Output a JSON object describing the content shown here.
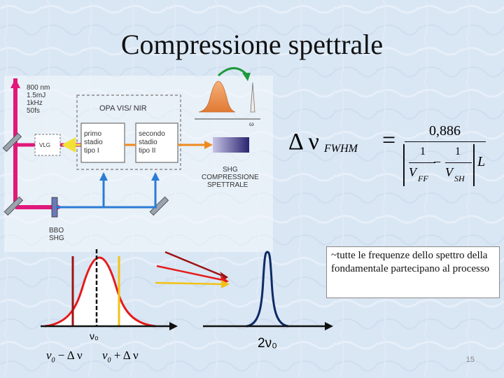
{
  "slide": {
    "title": "Compressione spettrale",
    "number": "15",
    "colors": {
      "background": "#dbe8f5",
      "pump": "#e0197a",
      "beam_blue": "#2b7bd6",
      "beam_orange": "#ef8a1f",
      "beam_yellow": "#f3e233",
      "peak_navy": "#0f2a66",
      "gauss_red": "#e51b1b"
    }
  },
  "setup": {
    "laser_specs": [
      "800 nm",
      "1.5mJ",
      "1kHz",
      "50fs"
    ],
    "opa_label": "OPA VIS/ NIR",
    "vlg_label": "VLG",
    "stage1": [
      "primo",
      "stadio",
      "tipo I"
    ],
    "stage2": [
      "secondo",
      "stadio",
      "tipo II"
    ],
    "shg_label": [
      "SHG",
      "COMPRESSIONE",
      "SPETTRALE"
    ],
    "bbo_label": [
      "BBO",
      "SHG"
    ],
    "omega_label": "ω"
  },
  "formula": {
    "lhs_symbol": "Δ ν",
    "lhs_sub": "FWHM",
    "equals": "=",
    "numerator": "0,886",
    "inner_num_1": "1",
    "inner_num_2": "1",
    "inner_den_1_base": "V",
    "inner_den_1_sub": "FF",
    "inner_den_2_base": "V",
    "inner_den_2_sub": "SH",
    "minus": "–",
    "length": "L"
  },
  "note": "~tutte le frequenze dello spettro della fondamentale partecipano al processo",
  "spectrum": {
    "center_label": "ν₀",
    "low_label_base": "ν",
    "low_label_sub": "0",
    "low_label_rest": "− Δ ν",
    "high_label_base": "ν",
    "high_label_sub": "0",
    "high_label_rest": "+ Δ ν",
    "sh_label": "2ν₀"
  }
}
